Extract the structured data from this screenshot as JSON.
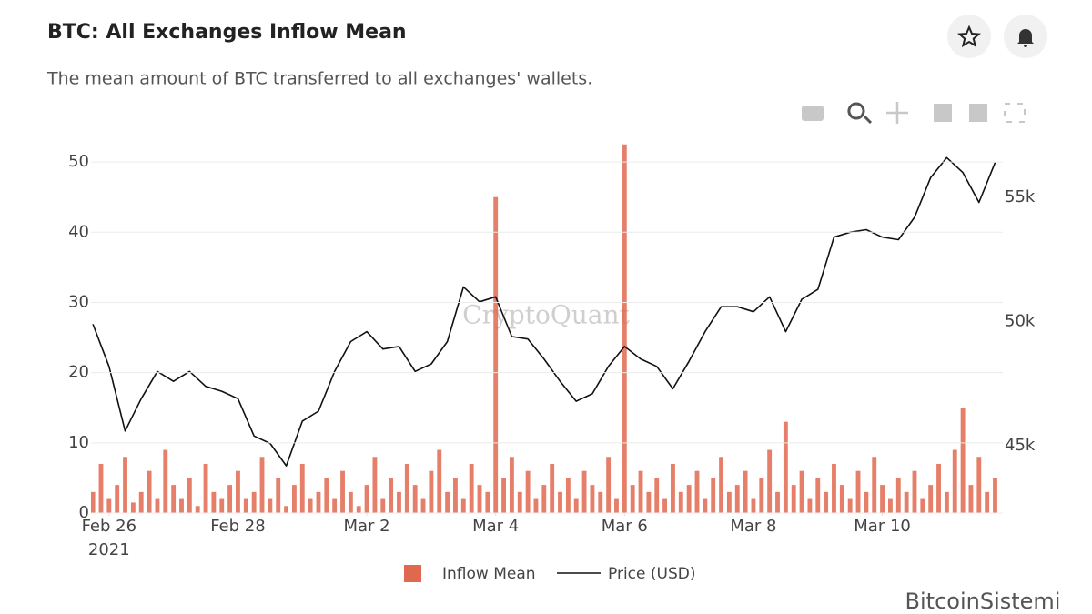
{
  "watermark": "CryptoQuant",
  "source_mark": "BitcoinSistemi",
  "chart_data": {
    "type": "combo",
    "title": "BTC: All Exchanges Inflow Mean",
    "subtitle": "The mean amount of BTC transferred to all exchanges' wallets.",
    "xlim": [
      -0.28,
      13.87
    ],
    "xticks": [
      {
        "value": 0,
        "label": "Feb 26"
      },
      {
        "value": 2,
        "label": "Feb 28"
      },
      {
        "value": 4,
        "label": "Mar 2"
      },
      {
        "value": 6,
        "label": "Mar 4"
      },
      {
        "value": 8,
        "label": "Mar 6"
      },
      {
        "value": 10,
        "label": "Mar 8"
      },
      {
        "value": 12,
        "label": "Mar 10"
      }
    ],
    "xtick_year": "2021",
    "ylim": [
      0,
      52.6
    ],
    "yticks": [
      0,
      10,
      20,
      30,
      40,
      50
    ],
    "y2lim": [
      42300,
      57160
    ],
    "y2ticks": [
      {
        "value": 45000,
        "label": "45k"
      },
      {
        "value": 50000,
        "label": "50k"
      },
      {
        "value": 55000,
        "label": "55k"
      }
    ],
    "grid": true,
    "legend": "bottom",
    "series": [
      {
        "name": "Inflow Mean",
        "type": "bar",
        "color": "#e0684f",
        "x": [
          -0.25,
          -0.125,
          0,
          0.125,
          0.25,
          0.375,
          0.5,
          0.625,
          0.75,
          0.875,
          1,
          1.125,
          1.25,
          1.375,
          1.5,
          1.625,
          1.75,
          1.875,
          2,
          2.125,
          2.25,
          2.375,
          2.5,
          2.625,
          2.75,
          2.875,
          3,
          3.125,
          3.25,
          3.375,
          3.5,
          3.625,
          3.75,
          3.875,
          4,
          4.125,
          4.25,
          4.375,
          4.5,
          4.625,
          4.75,
          4.875,
          5,
          5.125,
          5.25,
          5.375,
          5.5,
          5.625,
          5.75,
          5.875,
          6,
          6.125,
          6.25,
          6.375,
          6.5,
          6.625,
          6.75,
          6.875,
          7,
          7.125,
          7.25,
          7.375,
          7.5,
          7.625,
          7.75,
          7.875,
          8,
          8.125,
          8.25,
          8.375,
          8.5,
          8.625,
          8.75,
          8.875,
          9,
          9.125,
          9.25,
          9.375,
          9.5,
          9.625,
          9.75,
          9.875,
          10,
          10.125,
          10.25,
          10.375,
          10.5,
          10.625,
          10.75,
          10.875,
          11,
          11.125,
          11.25,
          11.375,
          11.5,
          11.625,
          11.75,
          11.875,
          12,
          12.125,
          12.25,
          12.375,
          12.5,
          12.625,
          12.75,
          12.875,
          13,
          13.125,
          13.25,
          13.375,
          13.5,
          13.625,
          13.75
        ],
        "values": [
          3,
          7,
          2,
          4,
          8,
          1.5,
          3,
          6,
          2,
          9,
          4,
          2,
          5,
          1,
          7,
          3,
          2,
          4,
          6,
          2,
          3,
          8,
          2,
          5,
          1,
          4,
          7,
          2,
          3,
          5,
          2,
          6,
          3,
          1,
          4,
          8,
          2,
          5,
          3,
          7,
          4,
          2,
          6,
          9,
          3,
          5,
          2,
          7,
          4,
          3,
          45,
          5,
          8,
          3,
          6,
          2,
          4,
          7,
          3,
          5,
          2,
          6,
          4,
          3,
          8,
          2,
          52.5,
          4,
          6,
          3,
          5,
          2,
          7,
          3,
          4,
          6,
          2,
          5,
          8,
          3,
          4,
          6,
          2,
          5,
          9,
          3,
          13,
          4,
          6,
          2,
          5,
          3,
          7,
          4,
          2,
          6,
          3,
          8,
          4,
          2,
          5,
          3,
          6,
          2,
          4,
          7,
          3,
          9,
          15,
          4,
          8,
          3,
          5
        ]
      },
      {
        "name": "Price (USD)",
        "type": "line",
        "axis": "y2",
        "color": "#111111",
        "x": [
          -0.25,
          0,
          0.25,
          0.5,
          0.75,
          1,
          1.25,
          1.5,
          1.75,
          2,
          2.25,
          2.5,
          2.75,
          3,
          3.25,
          3.5,
          3.75,
          4,
          4.25,
          4.5,
          4.75,
          5,
          5.25,
          5.5,
          5.75,
          6,
          6.25,
          6.5,
          6.75,
          7,
          7.25,
          7.5,
          7.75,
          8,
          8.25,
          8.5,
          8.75,
          9,
          9.25,
          9.5,
          9.75,
          10,
          10.25,
          10.5,
          10.75,
          11,
          11.25,
          11.5,
          11.75,
          12,
          12.25,
          12.5,
          12.75,
          13,
          13.25,
          13.5,
          13.75
        ],
        "values": [
          49900,
          48200,
          45600,
          46900,
          48000,
          47600,
          48000,
          47400,
          47200,
          46900,
          45400,
          45100,
          44200,
          46000,
          46400,
          48000,
          49200,
          49600,
          48900,
          49000,
          48000,
          48300,
          49200,
          51400,
          50800,
          51000,
          49400,
          49300,
          48500,
          47600,
          46800,
          47100,
          48200,
          49000,
          48500,
          48200,
          47300,
          48400,
          49600,
          50600,
          50600,
          50400,
          51000,
          49600,
          50900,
          51300,
          53400,
          53600,
          53700,
          53400,
          53300,
          54200,
          55800,
          56600,
          56000,
          54800,
          56400
        ]
      }
    ]
  }
}
